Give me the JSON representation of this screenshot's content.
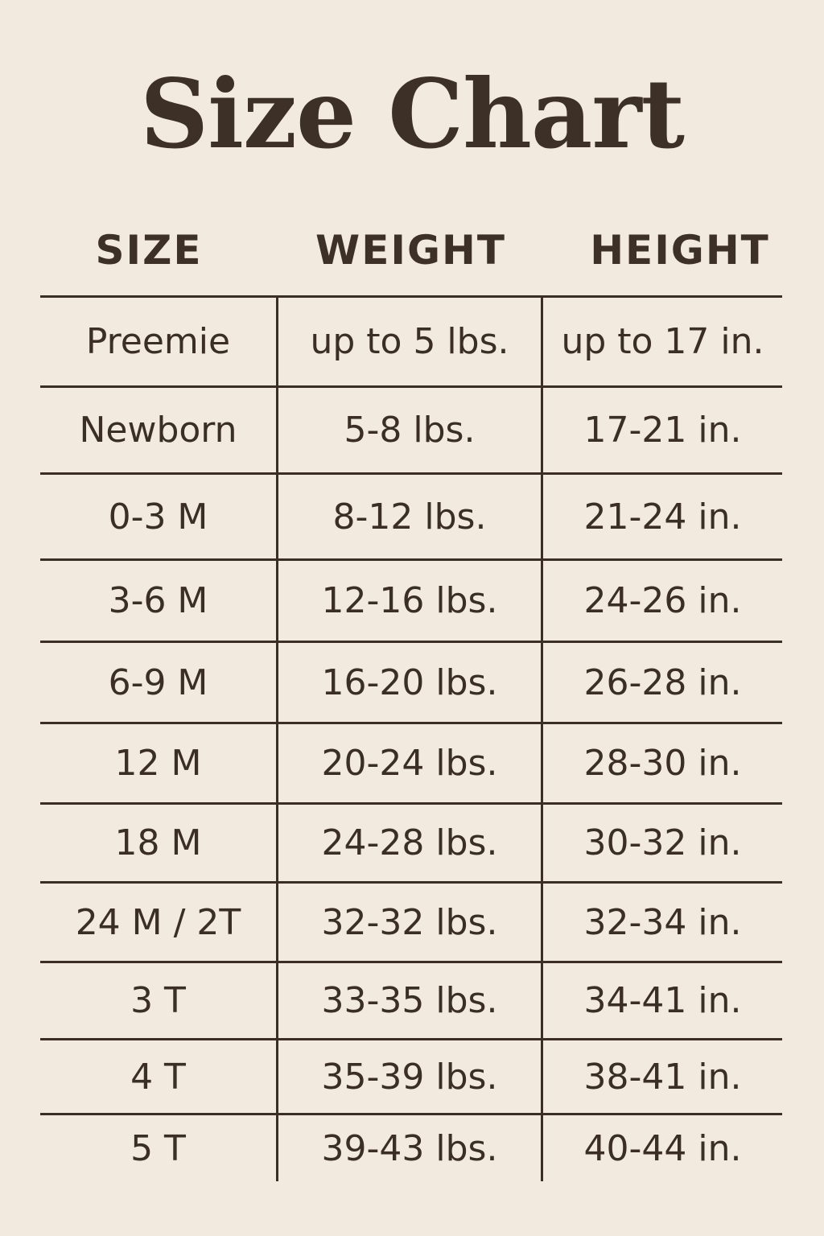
{
  "title": "Size Chart",
  "headers": [
    "SIZE",
    "WEIGHT",
    "HEIGHT"
  ],
  "rows": [
    [
      "Preemie",
      "up to 5 lbs.",
      "up to 17 in."
    ],
    [
      "Newborn",
      "5-8 lbs.",
      "17-21 in."
    ],
    [
      "0-3 M",
      "8-12 lbs.",
      "21-24 in."
    ],
    [
      "3-6 M",
      "12-16 lbs.",
      "24-26 in."
    ],
    [
      "6-9 M",
      "16-20 lbs.",
      "26-28 in."
    ],
    [
      "12 M",
      "20-24 lbs.",
      "28-30 in."
    ],
    [
      "18 M",
      "24-28 lbs.",
      "30-32 in."
    ],
    [
      "24 M / 2T",
      "32-32 lbs.",
      "32-34 in."
    ],
    [
      "3 T",
      "33-35 lbs.",
      "34-41 in."
    ],
    [
      "4 T",
      "35-39 lbs.",
      "38-41 in."
    ],
    [
      "5 T",
      "39-43 lbs.",
      "40-44 in."
    ]
  ],
  "colors": {
    "background": "#f2eadf",
    "text": "#3a2e26"
  }
}
